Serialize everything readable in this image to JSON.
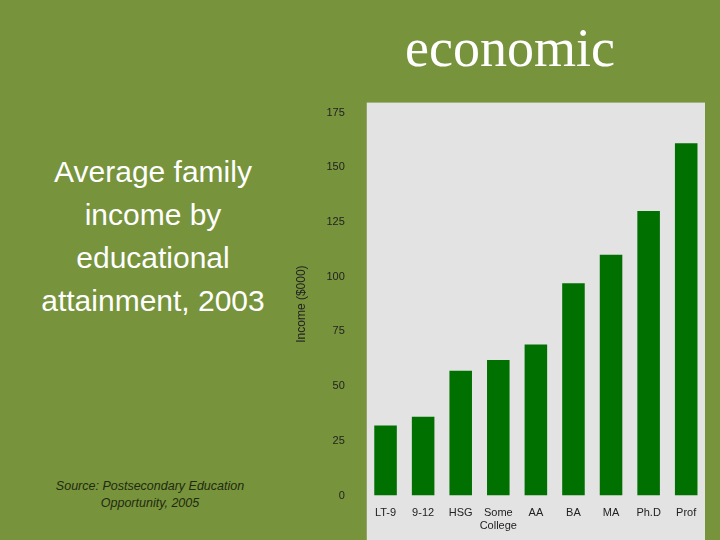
{
  "heading": "economic",
  "chart_data": {
    "type": "bar",
    "title": "Average family income by educational attainment, 2003",
    "source": "Source: Postsecondary Education Opportunity, 2005",
    "y_label": "Income ($000)",
    "categories": [
      "LT-9",
      "9-12",
      "HSG",
      "Some College",
      "AA",
      "BA",
      "MA",
      "Ph.D",
      "Prof"
    ],
    "values": [
      32,
      36,
      57,
      62,
      69,
      97,
      110,
      130,
      161
    ],
    "color": "#007000",
    "ylim": [
      0,
      175
    ],
    "yticks": [
      0,
      25,
      50,
      75,
      100,
      125,
      150,
      175
    ],
    "grid": false
  }
}
